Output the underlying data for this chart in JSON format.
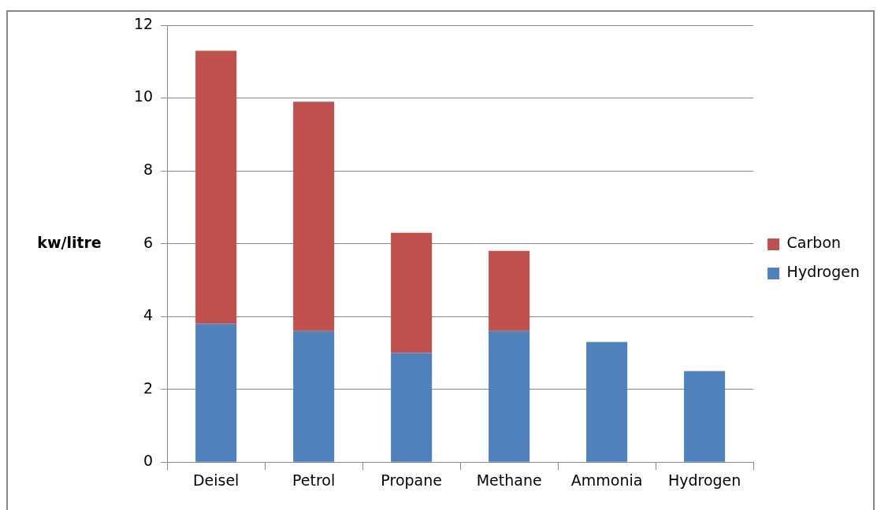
{
  "chart_data": {
    "type": "bar",
    "ylabel": "kw/litre",
    "categories": [
      "Deisel",
      "Petrol",
      "Propane",
      "Methane",
      "Ammonia",
      "Hydrogen"
    ],
    "stacked": true,
    "series": [
      {
        "name": "Hydrogen",
        "color": "#4f81bd",
        "values": [
          3.8,
          3.6,
          3.0,
          3.6,
          3.3,
          2.5
        ]
      },
      {
        "name": "Carbon",
        "color": "#c0504d",
        "values": [
          7.5,
          6.3,
          3.3,
          2.2,
          null,
          null
        ]
      }
    ],
    "ylim": [
      0,
      12
    ],
    "yticks": [
      0,
      2,
      4,
      6,
      8,
      10,
      12
    ],
    "grid": "y",
    "legend": "right"
  }
}
